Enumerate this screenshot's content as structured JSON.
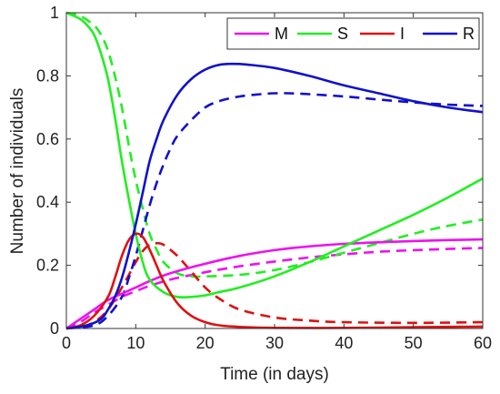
{
  "chart_data": {
    "type": "line",
    "title": "",
    "xlabel": "Time (in days)",
    "ylabel": "Number of individuals",
    "xlim": [
      0,
      60
    ],
    "ylim": [
      0,
      1
    ],
    "x_ticks": [
      0,
      10,
      20,
      30,
      40,
      50,
      60
    ],
    "y_ticks": [
      0,
      0.2,
      0.4,
      0.6,
      0.8,
      1
    ],
    "x_tick_labels": [
      "0",
      "10",
      "20",
      "30",
      "40",
      "50",
      "60"
    ],
    "y_tick_labels": [
      "0",
      "0.2",
      "0.4",
      "0.6",
      "0.8",
      "1"
    ],
    "grid": false,
    "legend_position": "top-right",
    "legend": [
      {
        "label": "M",
        "color": "#ee11ee"
      },
      {
        "label": "S",
        "color": "#22ee22"
      },
      {
        "label": "I",
        "color": "#dd1111"
      },
      {
        "label": "R",
        "color": "#1111cc"
      }
    ],
    "series": [
      {
        "name": "M",
        "style": "solid",
        "color": "#ee11ee",
        "x": [
          0,
          2,
          4,
          6,
          8,
          10,
          12,
          15,
          20,
          25,
          30,
          35,
          40,
          45,
          50,
          55,
          60
        ],
        "y": [
          0,
          0.03,
          0.06,
          0.09,
          0.11,
          0.13,
          0.15,
          0.175,
          0.205,
          0.23,
          0.248,
          0.26,
          0.268,
          0.273,
          0.277,
          0.28,
          0.282
        ]
      },
      {
        "name": "S",
        "style": "solid",
        "color": "#22ee22",
        "x": [
          0,
          2,
          3,
          4,
          5,
          6,
          7,
          8,
          9,
          10,
          11,
          12,
          14,
          16,
          18,
          20,
          22,
          25,
          30,
          35,
          40,
          45,
          50,
          55,
          60
        ],
        "y": [
          1.0,
          0.98,
          0.96,
          0.93,
          0.87,
          0.79,
          0.67,
          0.53,
          0.41,
          0.3,
          0.21,
          0.155,
          0.115,
          0.1,
          0.1,
          0.105,
          0.115,
          0.13,
          0.165,
          0.21,
          0.26,
          0.31,
          0.36,
          0.415,
          0.475
        ]
      },
      {
        "name": "I",
        "style": "solid",
        "color": "#dd1111",
        "x": [
          0,
          2,
          4,
          6,
          7,
          8,
          9,
          10,
          11,
          12,
          13,
          14,
          16,
          18,
          20,
          22,
          25,
          30,
          40,
          50,
          60
        ],
        "y": [
          0,
          0.01,
          0.04,
          0.1,
          0.16,
          0.23,
          0.28,
          0.3,
          0.29,
          0.25,
          0.2,
          0.15,
          0.08,
          0.04,
          0.02,
          0.01,
          0.005,
          0.002,
          0.002,
          0.004,
          0.006
        ]
      },
      {
        "name": "R",
        "style": "solid",
        "color": "#1111cc",
        "x": [
          0,
          3,
          5,
          6,
          7,
          8,
          9,
          10,
          11,
          12,
          13,
          14,
          16,
          18,
          20,
          22,
          24,
          26,
          30,
          35,
          40,
          45,
          50,
          55,
          60
        ],
        "y": [
          0,
          0.01,
          0.03,
          0.06,
          0.1,
          0.16,
          0.24,
          0.33,
          0.43,
          0.53,
          0.6,
          0.66,
          0.74,
          0.79,
          0.82,
          0.835,
          0.838,
          0.836,
          0.825,
          0.8,
          0.77,
          0.745,
          0.72,
          0.7,
          0.685
        ]
      },
      {
        "name": "M",
        "style": "dashed",
        "color": "#ee11ee",
        "x": [
          0,
          2,
          4,
          6,
          8,
          10,
          12,
          15,
          20,
          25,
          30,
          35,
          40,
          45,
          50,
          55,
          60
        ],
        "y": [
          0,
          0.02,
          0.05,
          0.075,
          0.1,
          0.118,
          0.135,
          0.155,
          0.178,
          0.197,
          0.212,
          0.225,
          0.235,
          0.243,
          0.248,
          0.252,
          0.255
        ]
      },
      {
        "name": "S",
        "style": "dashed",
        "color": "#22ee22",
        "x": [
          0,
          2,
          4,
          5,
          6,
          7,
          8,
          9,
          10,
          11,
          12,
          13,
          14,
          16,
          18,
          20,
          25,
          30,
          35,
          40,
          45,
          50,
          55,
          60
        ],
        "y": [
          1.0,
          0.99,
          0.96,
          0.93,
          0.88,
          0.8,
          0.7,
          0.58,
          0.47,
          0.38,
          0.3,
          0.25,
          0.21,
          0.175,
          0.165,
          0.165,
          0.17,
          0.185,
          0.21,
          0.24,
          0.27,
          0.3,
          0.325,
          0.345
        ]
      },
      {
        "name": "I",
        "style": "dashed",
        "color": "#dd1111",
        "x": [
          0,
          2,
          4,
          6,
          8,
          10,
          11,
          12,
          13,
          14,
          16,
          18,
          20,
          22,
          25,
          30,
          35,
          40,
          50,
          60
        ],
        "y": [
          0,
          0.005,
          0.02,
          0.06,
          0.13,
          0.21,
          0.245,
          0.265,
          0.27,
          0.265,
          0.23,
          0.18,
          0.13,
          0.095,
          0.06,
          0.035,
          0.025,
          0.02,
          0.018,
          0.02
        ]
      },
      {
        "name": "R",
        "style": "dashed",
        "color": "#1111cc",
        "x": [
          0,
          4,
          6,
          8,
          9,
          10,
          11,
          12,
          13,
          14,
          15,
          16,
          18,
          20,
          22,
          25,
          28,
          30,
          32,
          35,
          40,
          45,
          50,
          55,
          60
        ],
        "y": [
          0,
          0.01,
          0.04,
          0.1,
          0.16,
          0.23,
          0.31,
          0.39,
          0.46,
          0.52,
          0.57,
          0.61,
          0.66,
          0.7,
          0.72,
          0.735,
          0.742,
          0.745,
          0.745,
          0.742,
          0.735,
          0.725,
          0.716,
          0.709,
          0.705
        ]
      }
    ]
  }
}
